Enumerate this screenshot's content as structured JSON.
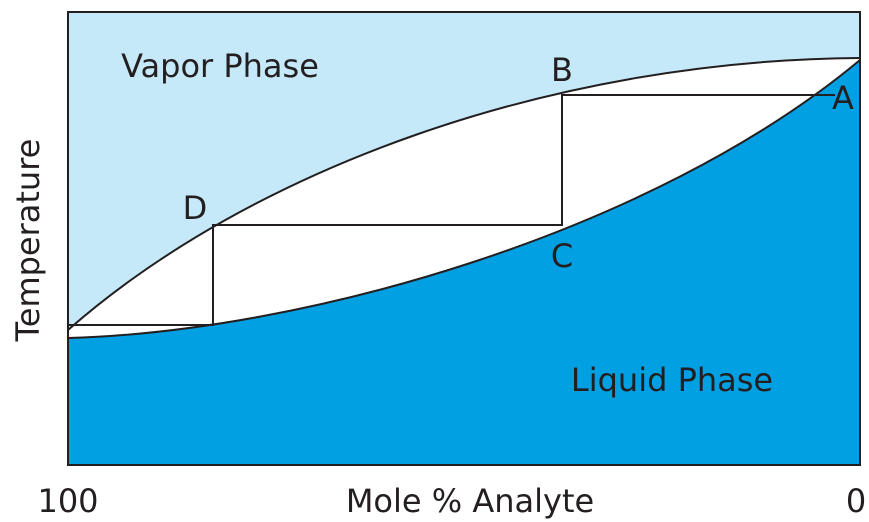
{
  "labels": {
    "vapor": "Vapor Phase",
    "liquid": "Liquid Phase",
    "a": "A",
    "b": "B",
    "c": "C",
    "d": "D"
  },
  "axes": {
    "y_label": "Temperature",
    "x_label": "Mole % Analyte",
    "x_left": "100",
    "x_right": "0"
  }
}
